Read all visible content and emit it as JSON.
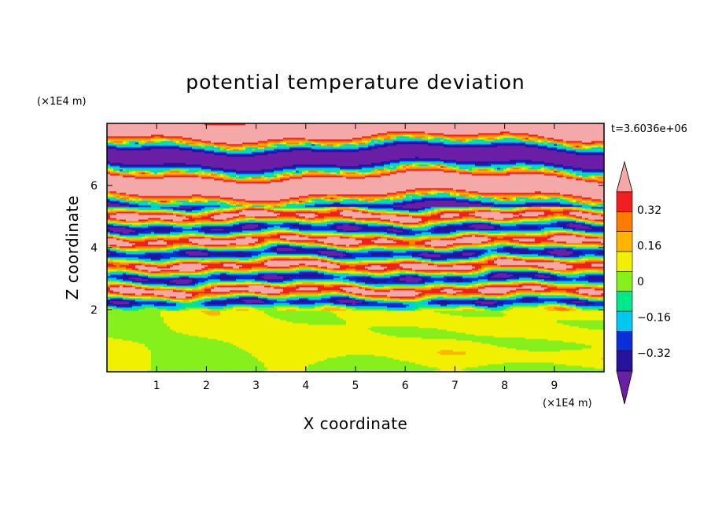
{
  "chart_data": {
    "type": "heatmap",
    "title": "potential temperature deviation",
    "xlabel": "X coordinate",
    "ylabel": "Z coordinate",
    "x_unit": "(×1E4 m)",
    "y_unit": "(×1E4 m)",
    "time_label": "t=3.6036e+06",
    "xlim": [
      0,
      10
    ],
    "ylim": [
      0,
      8
    ],
    "x_ticks": [
      "1",
      "2",
      "3",
      "4",
      "5",
      "6",
      "7",
      "8",
      "9"
    ],
    "y_ticks": [
      "2",
      "4",
      "6"
    ],
    "x_tick_values": [
      1,
      2,
      3,
      4,
      5,
      6,
      7,
      8,
      9
    ],
    "y_tick_values": [
      2,
      4,
      6
    ],
    "colorbar": {
      "levels": [
        -0.4,
        -0.32,
        -0.24,
        -0.16,
        -0.08,
        0,
        0.08,
        0.16,
        0.24,
        0.32,
        0.4
      ],
      "labels": [
        "0.32",
        "0.16",
        "0",
        "−0.16",
        "−0.32"
      ],
      "label_values": [
        0.32,
        0.16,
        0,
        -0.16,
        -0.32
      ],
      "colors": [
        "#6a1fa6",
        "#27129a",
        "#0a2fd8",
        "#00c8f0",
        "#00e888",
        "#86f01c",
        "#f0f000",
        "#ffb400",
        "#ff7a00",
        "#f02020",
        "#f4a8a8"
      ],
      "extend": "both"
    },
    "layers": [
      {
        "z_range": [
          0,
          2.0
        ],
        "description_value_range": [
          -0.08,
          0.08
        ]
      },
      {
        "z_range": [
          2.0,
          5.3
        ],
        "description_value_range": [
          -0.4,
          0.4
        ]
      },
      {
        "z_range": [
          5.3,
          8.0
        ],
        "description_value_range": [
          -0.4,
          0.4
        ]
      }
    ]
  }
}
